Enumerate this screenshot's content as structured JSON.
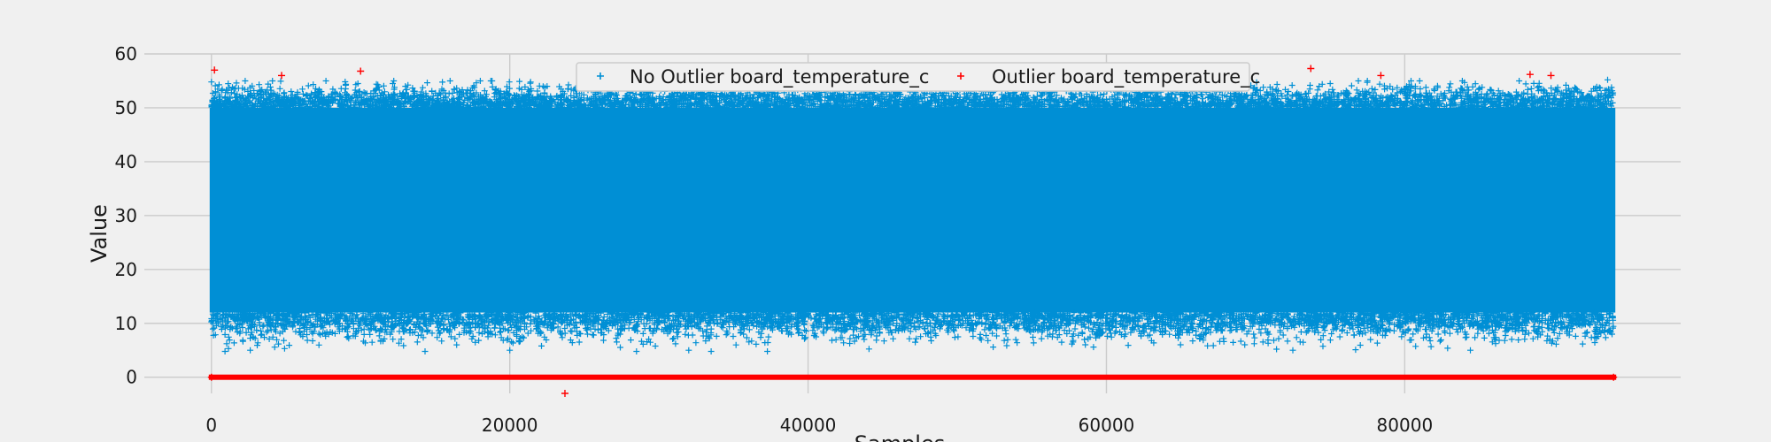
{
  "chart_data": {
    "type": "scatter",
    "xlabel": "Samples",
    "ylabel": "Value",
    "xlim": [
      -4500,
      98500
    ],
    "ylim": [
      -3,
      60
    ],
    "x_ticks": [
      0,
      20000,
      40000,
      60000,
      80000
    ],
    "y_ticks": [
      0,
      10,
      20,
      30,
      40,
      50,
      60
    ],
    "x_tick_labels": [
      "0",
      "20000",
      "40000",
      "60000",
      "80000"
    ],
    "y_tick_labels": [
      "0",
      "10",
      "20",
      "30",
      "40",
      "50",
      "60"
    ],
    "grid": true,
    "legend_position": "top-center",
    "marker": "+",
    "sample_range": [
      0,
      94000
    ],
    "series": [
      {
        "name": "No Outlier board_temperature_c",
        "color": "#008fd5",
        "value_range": [
          4.8,
          55
        ],
        "typical_range": [
          12,
          50
        ],
        "points": [
          [
            0,
            54.8
          ],
          [
            1500,
            53.5
          ],
          [
            2600,
            5
          ],
          [
            3800,
            54.4
          ],
          [
            6500,
            54.1
          ],
          [
            9000,
            54.2
          ],
          [
            13000,
            54
          ],
          [
            16000,
            55
          ],
          [
            20000,
            5
          ],
          [
            22500,
            54
          ],
          [
            32000,
            5
          ],
          [
            33500,
            4.8
          ],
          [
            48000,
            54
          ],
          [
            55000,
            54.5
          ],
          [
            57000,
            6.5
          ],
          [
            60000,
            54.2
          ],
          [
            66000,
            54.4
          ],
          [
            72500,
            5
          ],
          [
            75000,
            54.5
          ],
          [
            81000,
            55
          ],
          [
            84000,
            54.7
          ],
          [
            84400,
            5
          ],
          [
            89000,
            54
          ],
          [
            93600,
            55.2
          ]
        ]
      },
      {
        "name": "Outlier board_temperature_c",
        "color": "#ff0000",
        "value_range": [
          -3,
          57
        ],
        "points": [
          [
            200,
            57
          ],
          [
            4700,
            56
          ],
          [
            10000,
            56.8
          ],
          [
            23700,
            -3
          ],
          [
            73700,
            57.3
          ],
          [
            78400,
            56
          ],
          [
            88400,
            56.2
          ],
          [
            89800,
            56
          ],
          [
            0,
            0
          ],
          [
            94000,
            0
          ]
        ],
        "baseline_value": 0
      }
    ]
  }
}
